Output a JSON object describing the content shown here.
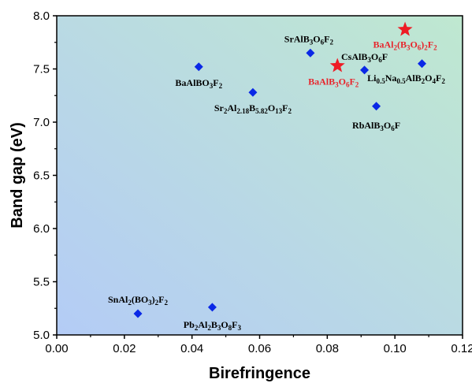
{
  "chart_data": {
    "type": "scatter",
    "xlabel": "Birefringence",
    "ylabel": "Band gap (eV)",
    "xlim": [
      0.0,
      0.12
    ],
    "ylim": [
      5.0,
      8.0
    ],
    "xticks": [
      0.0,
      0.02,
      0.04,
      0.06,
      0.08,
      0.1,
      0.12
    ],
    "yticks": [
      5.0,
      5.5,
      6.0,
      6.5,
      7.0,
      7.5,
      8.0
    ],
    "xtick_labels": [
      "0.00",
      "0.02",
      "0.04",
      "0.06",
      "0.08",
      "0.10",
      "0.12"
    ],
    "ytick_labels": [
      "5.0",
      "5.5",
      "6.0",
      "6.5",
      "7.0",
      "7.5",
      "8.0"
    ],
    "grid": false,
    "colors": {
      "reference_marker": "#0a28e6",
      "highlight_marker": "#ee1c25",
      "highlight_text": "#e8232a",
      "bg_low_left": "#b4ccf6",
      "bg_up_right": "#bfe8d0"
    },
    "points": [
      {
        "label": "BaAlBO3F2",
        "x": 0.042,
        "y": 7.52,
        "marker": "diamond",
        "group": "reference"
      },
      {
        "label": "Sr2Al2.18B5.82O13F2",
        "x": 0.058,
        "y": 7.28,
        "marker": "diamond",
        "group": "reference"
      },
      {
        "label": "SrAlB3O6F2",
        "x": 0.075,
        "y": 7.65,
        "marker": "diamond",
        "group": "reference"
      },
      {
        "label": "CsAlB3O6F",
        "x": 0.091,
        "y": 7.49,
        "marker": "diamond",
        "group": "reference"
      },
      {
        "label": "RbAlB3O6F",
        "x": 0.0945,
        "y": 7.15,
        "marker": "diamond",
        "group": "reference"
      },
      {
        "label": "Li0.5Na0.5AlB2O4F2",
        "x": 0.108,
        "y": 7.55,
        "marker": "diamond",
        "group": "reference"
      },
      {
        "label": "SnAl2(BO3)2F2",
        "x": 0.024,
        "y": 5.2,
        "marker": "diamond",
        "group": "reference"
      },
      {
        "label": "Pb2Al2B3O8F3",
        "x": 0.046,
        "y": 5.26,
        "marker": "diamond",
        "group": "reference"
      },
      {
        "label": "BaAlB3O6F2",
        "x": 0.083,
        "y": 7.53,
        "marker": "star",
        "group": "highlight"
      },
      {
        "label": "BaAl2(B3O6)2F2",
        "x": 0.103,
        "y": 7.87,
        "marker": "star",
        "group": "highlight"
      }
    ]
  }
}
